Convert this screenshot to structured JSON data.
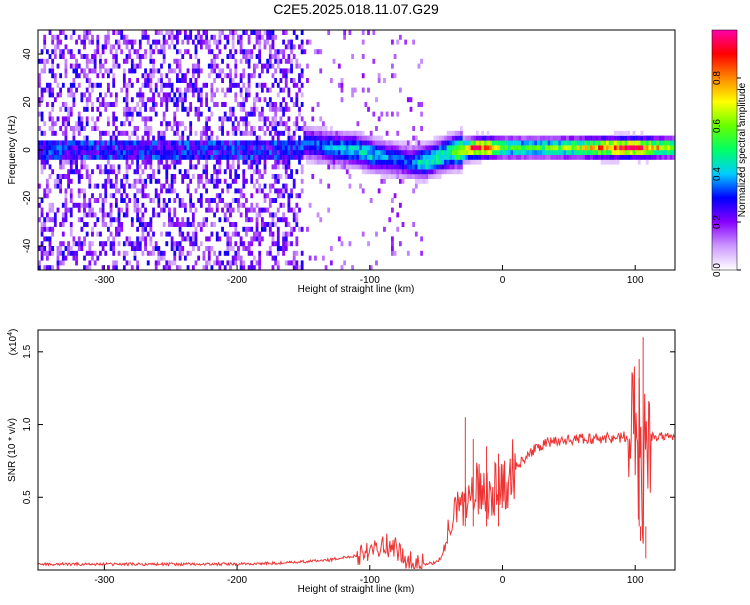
{
  "page": {
    "title": "C2E5.2025.018.11.07.G29"
  },
  "chart_data": [
    {
      "type": "heatmap",
      "title": "C2E5.2025.018.11.07.G29",
      "xlabel": "Height of straight line (km)",
      "ylabel": "Frequency (Hz)",
      "xlim": [
        -350,
        130
      ],
      "ylim": [
        -50,
        50
      ],
      "xticks": [
        -300,
        -200,
        -100,
        0,
        100
      ],
      "yticks": [
        -40,
        -20,
        0,
        20,
        40
      ],
      "colorbar": {
        "label": "Normalized spectral amplitude",
        "range": [
          0,
          1
        ],
        "ticks": [
          "0.0",
          "0.2",
          "0.4",
          "0.6",
          "0.8"
        ],
        "colors": [
          "#ffffff",
          "#cc99ff",
          "#8800ff",
          "#0000ff",
          "#00ccff",
          "#00ff66",
          "#66ff00",
          "#ffff00",
          "#ff8800",
          "#ff0000",
          "#ff00aa"
        ]
      },
      "ridge": {
        "x": [
          -150,
          -130,
          -110,
          -100,
          -90,
          -80,
          -70,
          -60,
          -50,
          -40,
          -30,
          -20,
          -10,
          0,
          20,
          40,
          60,
          80,
          100,
          130
        ],
        "frequency": [
          3,
          1,
          0,
          -2,
          -3,
          -4,
          -5,
          -5,
          -3,
          -1,
          0,
          1,
          1,
          1,
          1,
          1,
          1,
          1,
          1,
          1
        ],
        "amplitude": [
          0.35,
          0.4,
          0.45,
          0.45,
          0.4,
          0.35,
          0.35,
          0.5,
          0.5,
          0.55,
          0.75,
          0.95,
          0.85,
          0.6,
          0.55,
          0.6,
          0.7,
          0.9,
          0.95,
          0.6
        ]
      },
      "noise_region_x": [
        -350,
        -150
      ]
    },
    {
      "type": "line",
      "xlabel": "Height of straight line (km)",
      "ylabel": "SNR (10 * v/v)",
      "scale_label": "(x10",
      "scale_exponent": "4",
      "scale_close": ")",
      "xlim": [
        -350,
        130
      ],
      "ylim": [
        0,
        1.65
      ],
      "xticks": [
        -300,
        -200,
        -100,
        0,
        100
      ],
      "yticks": [
        "0.5",
        "1.0",
        "1.5"
      ],
      "color": "#ee3333",
      "x": [
        -350,
        -300,
        -250,
        -200,
        -160,
        -130,
        -110,
        -100,
        -90,
        -80,
        -75,
        -70,
        -60,
        -50,
        -45,
        -40,
        -35,
        -30,
        -25,
        -20,
        -15,
        -10,
        -5,
        0,
        5,
        10,
        15,
        20,
        30,
        40,
        60,
        80,
        90,
        95,
        100,
        102,
        104,
        106,
        108,
        110,
        115,
        120,
        130
      ],
      "y": [
        0.04,
        0.04,
        0.04,
        0.04,
        0.05,
        0.07,
        0.1,
        0.15,
        0.18,
        0.15,
        0.08,
        0.05,
        0.04,
        0.05,
        0.1,
        0.3,
        0.4,
        0.45,
        0.5,
        0.55,
        0.55,
        0.52,
        0.56,
        0.6,
        0.65,
        0.7,
        0.76,
        0.8,
        0.86,
        0.89,
        0.9,
        0.91,
        0.91,
        0.92,
        1.05,
        0.5,
        1.35,
        0.4,
        1.2,
        0.92,
        0.91,
        0.92,
        0.91
      ],
      "spikes": [
        {
          "x": -28,
          "y": 1.05
        },
        {
          "x": -22,
          "y": 0.9
        },
        {
          "x": -12,
          "y": 0.85
        },
        {
          "x": -3,
          "y": 0.8
        },
        {
          "x": 103,
          "y": 1.45
        },
        {
          "x": 106,
          "y": 1.6
        },
        {
          "x": 108,
          "y": 0.08
        },
        {
          "x": 104,
          "y": 0.2
        }
      ]
    }
  ]
}
